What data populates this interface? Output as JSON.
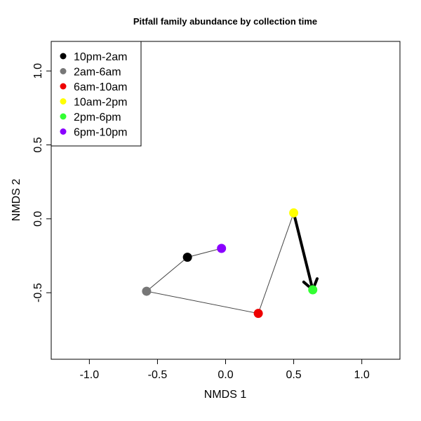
{
  "chart_data": {
    "type": "scatter",
    "title": "Pitfall family abundance by collection time",
    "xlabel": "NMDS 1",
    "ylabel": "NMDS 2",
    "xlim": [
      -1.28,
      1.28
    ],
    "ylim": [
      -0.95,
      1.2
    ],
    "x_ticks": [
      -1.0,
      -0.5,
      0.0,
      0.5,
      1.0
    ],
    "x_tick_labels": [
      "-1.0",
      "-0.5",
      "0.0",
      "0.5",
      "1.0"
    ],
    "y_ticks": [
      -0.5,
      0.0,
      0.5,
      1.0
    ],
    "y_tick_labels": [
      "-0.5",
      "0.0",
      "0.5",
      "1.0"
    ],
    "grid": false,
    "legend_position": "top-left",
    "points": [
      {
        "name": "10pm-2am",
        "x": -0.28,
        "y": -0.26,
        "color": "#000000"
      },
      {
        "name": "2am-6am",
        "x": -0.58,
        "y": -0.49,
        "color": "#777777"
      },
      {
        "name": "6am-10am",
        "x": 0.24,
        "y": -0.64,
        "color": "#ee0000"
      },
      {
        "name": "10am-2pm",
        "x": 0.5,
        "y": 0.04,
        "color": "#ffff00"
      },
      {
        "name": "2pm-6pm",
        "x": 0.64,
        "y": -0.48,
        "color": "#33ff33"
      },
      {
        "name": "6pm-10pm",
        "x": -0.03,
        "y": -0.2,
        "color": "#8a00ff"
      }
    ],
    "path_order": [
      "6pm-10pm",
      "10pm-2am",
      "2am-6am",
      "6am-10am",
      "10am-2pm"
    ],
    "arrow": {
      "from": "10am-2pm",
      "to": "2pm-6pm"
    }
  }
}
